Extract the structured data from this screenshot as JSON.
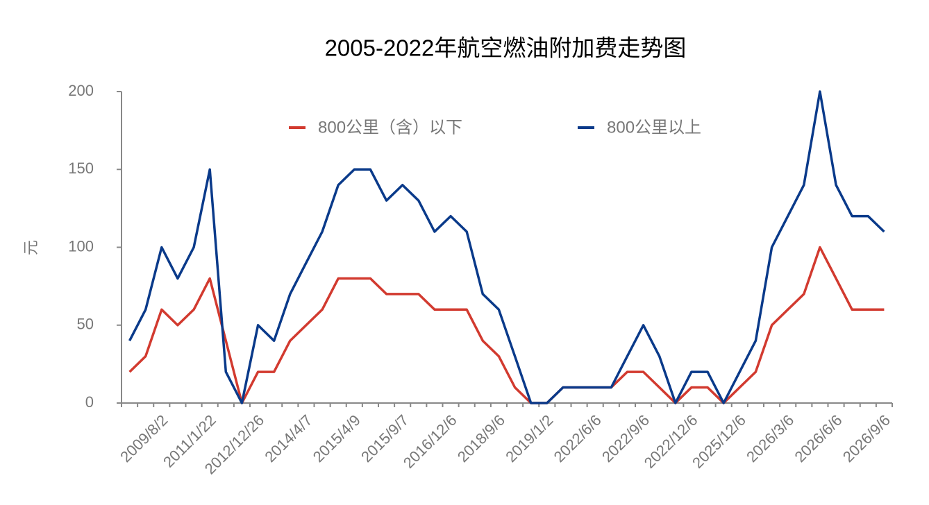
{
  "chart_data": {
    "type": "line",
    "title": "2005-2022年航空燃油附加费走势图",
    "y_label": "元",
    "categories": [
      null,
      null,
      "2009/8/2",
      null,
      null,
      "2011/1/22",
      null,
      null,
      "2012/12/26",
      null,
      null,
      "2014/4/7",
      null,
      null,
      "2015/4/9",
      null,
      null,
      "2015/9/7",
      null,
      null,
      "2016/12/6",
      null,
      null,
      "2018/9/6",
      null,
      null,
      "2019/1/2",
      null,
      null,
      "2022/6/6",
      null,
      null,
      "2022/9/6",
      null,
      null,
      "2022/12/6",
      null,
      null,
      "2025/12/6",
      null,
      null,
      "2026/3/6",
      null,
      null,
      "2026/6/6",
      null,
      null,
      "2026/9/6"
    ],
    "series": [
      {
        "name": "800公里（含）以下",
        "color": "#d23a2f",
        "values": [
          20,
          30,
          60,
          50,
          60,
          80,
          40,
          0,
          20,
          20,
          40,
          50,
          60,
          80,
          80,
          80,
          70,
          70,
          70,
          60,
          60,
          60,
          40,
          30,
          10,
          0,
          0,
          10,
          10,
          10,
          10,
          20,
          20,
          10,
          0,
          10,
          10,
          0,
          10,
          20,
          50,
          60,
          70,
          100,
          80,
          60,
          60,
          60
        ]
      },
      {
        "name": "800公里以上",
        "color": "#0a3a8a",
        "values": [
          40,
          60,
          100,
          80,
          100,
          150,
          20,
          0,
          50,
          40,
          70,
          90,
          110,
          140,
          150,
          150,
          130,
          140,
          130,
          110,
          120,
          110,
          70,
          60,
          30,
          0,
          0,
          10,
          10,
          10,
          10,
          30,
          50,
          30,
          0,
          20,
          20,
          0,
          20,
          40,
          100,
          120,
          140,
          200,
          140,
          120,
          120,
          110
        ]
      }
    ],
    "ylim": [
      0,
      200
    ],
    "yticks": [
      0,
      50,
      100,
      150,
      200
    ],
    "grid": false
  }
}
